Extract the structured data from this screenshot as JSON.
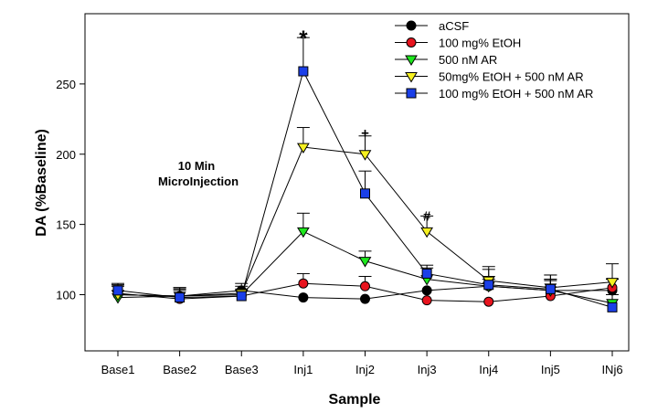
{
  "chart_data": {
    "type": "line",
    "title": "",
    "xlabel": "Sample",
    "ylabel": "DA (%Baseline)",
    "ylim": [
      60,
      300
    ],
    "yticks": [
      100,
      150,
      200,
      250
    ],
    "categories": [
      "Base1",
      "Base2",
      "Base3",
      "Inj1",
      "Inj2",
      "Inj3",
      "Inj4",
      "Inj5",
      "INj6"
    ],
    "legend_position": "top-right",
    "series": [
      {
        "name": "aCSF",
        "marker": "circle",
        "color": "#000000",
        "values": [
          100,
          99,
          103,
          98,
          97,
          103,
          106,
          103,
          103
        ],
        "errors": [
          7,
          6,
          5,
          0,
          0,
          0,
          12,
          11,
          8
        ]
      },
      {
        "name": "100 mg% EtOH",
        "marker": "circle",
        "color": "#e8141e",
        "values": [
          101,
          97,
          99,
          108,
          106,
          96,
          95,
          99,
          105
        ],
        "errors": [
          6,
          8,
          4,
          7,
          7,
          0,
          0,
          12,
          6
        ]
      },
      {
        "name": "500 nM AR",
        "marker": "triangle-down",
        "color": "#1ee81e",
        "values": [
          98,
          99,
          100,
          145,
          124,
          111,
          106,
          103,
          94
        ],
        "errors": [
          5,
          5,
          4,
          13,
          7,
          8,
          5,
          8,
          6
        ]
      },
      {
        "name": "50mg% EtOH + 500 nM AR",
        "marker": "triangle-down",
        "color": "#f5f020",
        "values": [
          100,
          99,
          101,
          205,
          200,
          145,
          110,
          105,
          109
        ],
        "errors": [
          6,
          6,
          5,
          14,
          13,
          11,
          10,
          9,
          13
        ]
      },
      {
        "name": "100 mg% EtOH + 500 nM AR",
        "marker": "square",
        "color": "#1a3fe8",
        "values": [
          103,
          98,
          99,
          259,
          172,
          115,
          107,
          104,
          91
        ],
        "errors": [
          5,
          5,
          4,
          24,
          16,
          6,
          6,
          6,
          0
        ]
      }
    ],
    "annotations": [
      {
        "text": "*",
        "category": "Inj1",
        "y": 283
      },
      {
        "text": "+",
        "category": "Inj2",
        "y": 215
      },
      {
        "text": "#",
        "category": "Inj3",
        "y": 156
      }
    ],
    "note": {
      "line1": "10 Min",
      "line2": "MicroInjection"
    }
  }
}
